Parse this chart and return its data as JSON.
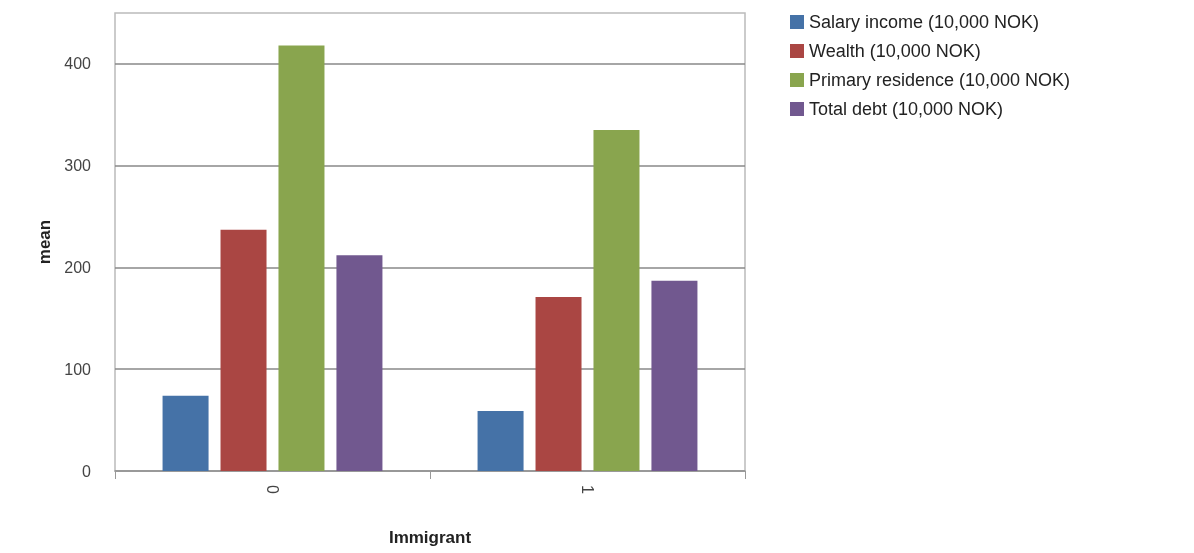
{
  "chart_data": {
    "type": "bar",
    "xlabel": "Immigrant",
    "ylabel": "mean",
    "categories": [
      "0",
      "1"
    ],
    "series": [
      {
        "name": "Salary income (10,000 NOK)",
        "color": "#4572a7",
        "values": [
          74,
          59
        ]
      },
      {
        "name": "Wealth (10,000 NOK)",
        "color": "#aa4643",
        "values": [
          237,
          171
        ]
      },
      {
        "name": "Primary residence (10,000 NOK)",
        "color": "#89a54e",
        "values": [
          418,
          335
        ]
      },
      {
        "name": "Total debt (10,000 NOK)",
        "color": "#71588f",
        "values": [
          212,
          187
        ]
      }
    ],
    "ylim": [
      0,
      450
    ],
    "yticks": [
      0,
      100,
      200,
      300,
      400
    ],
    "grid": "y",
    "legend": "top right"
  }
}
